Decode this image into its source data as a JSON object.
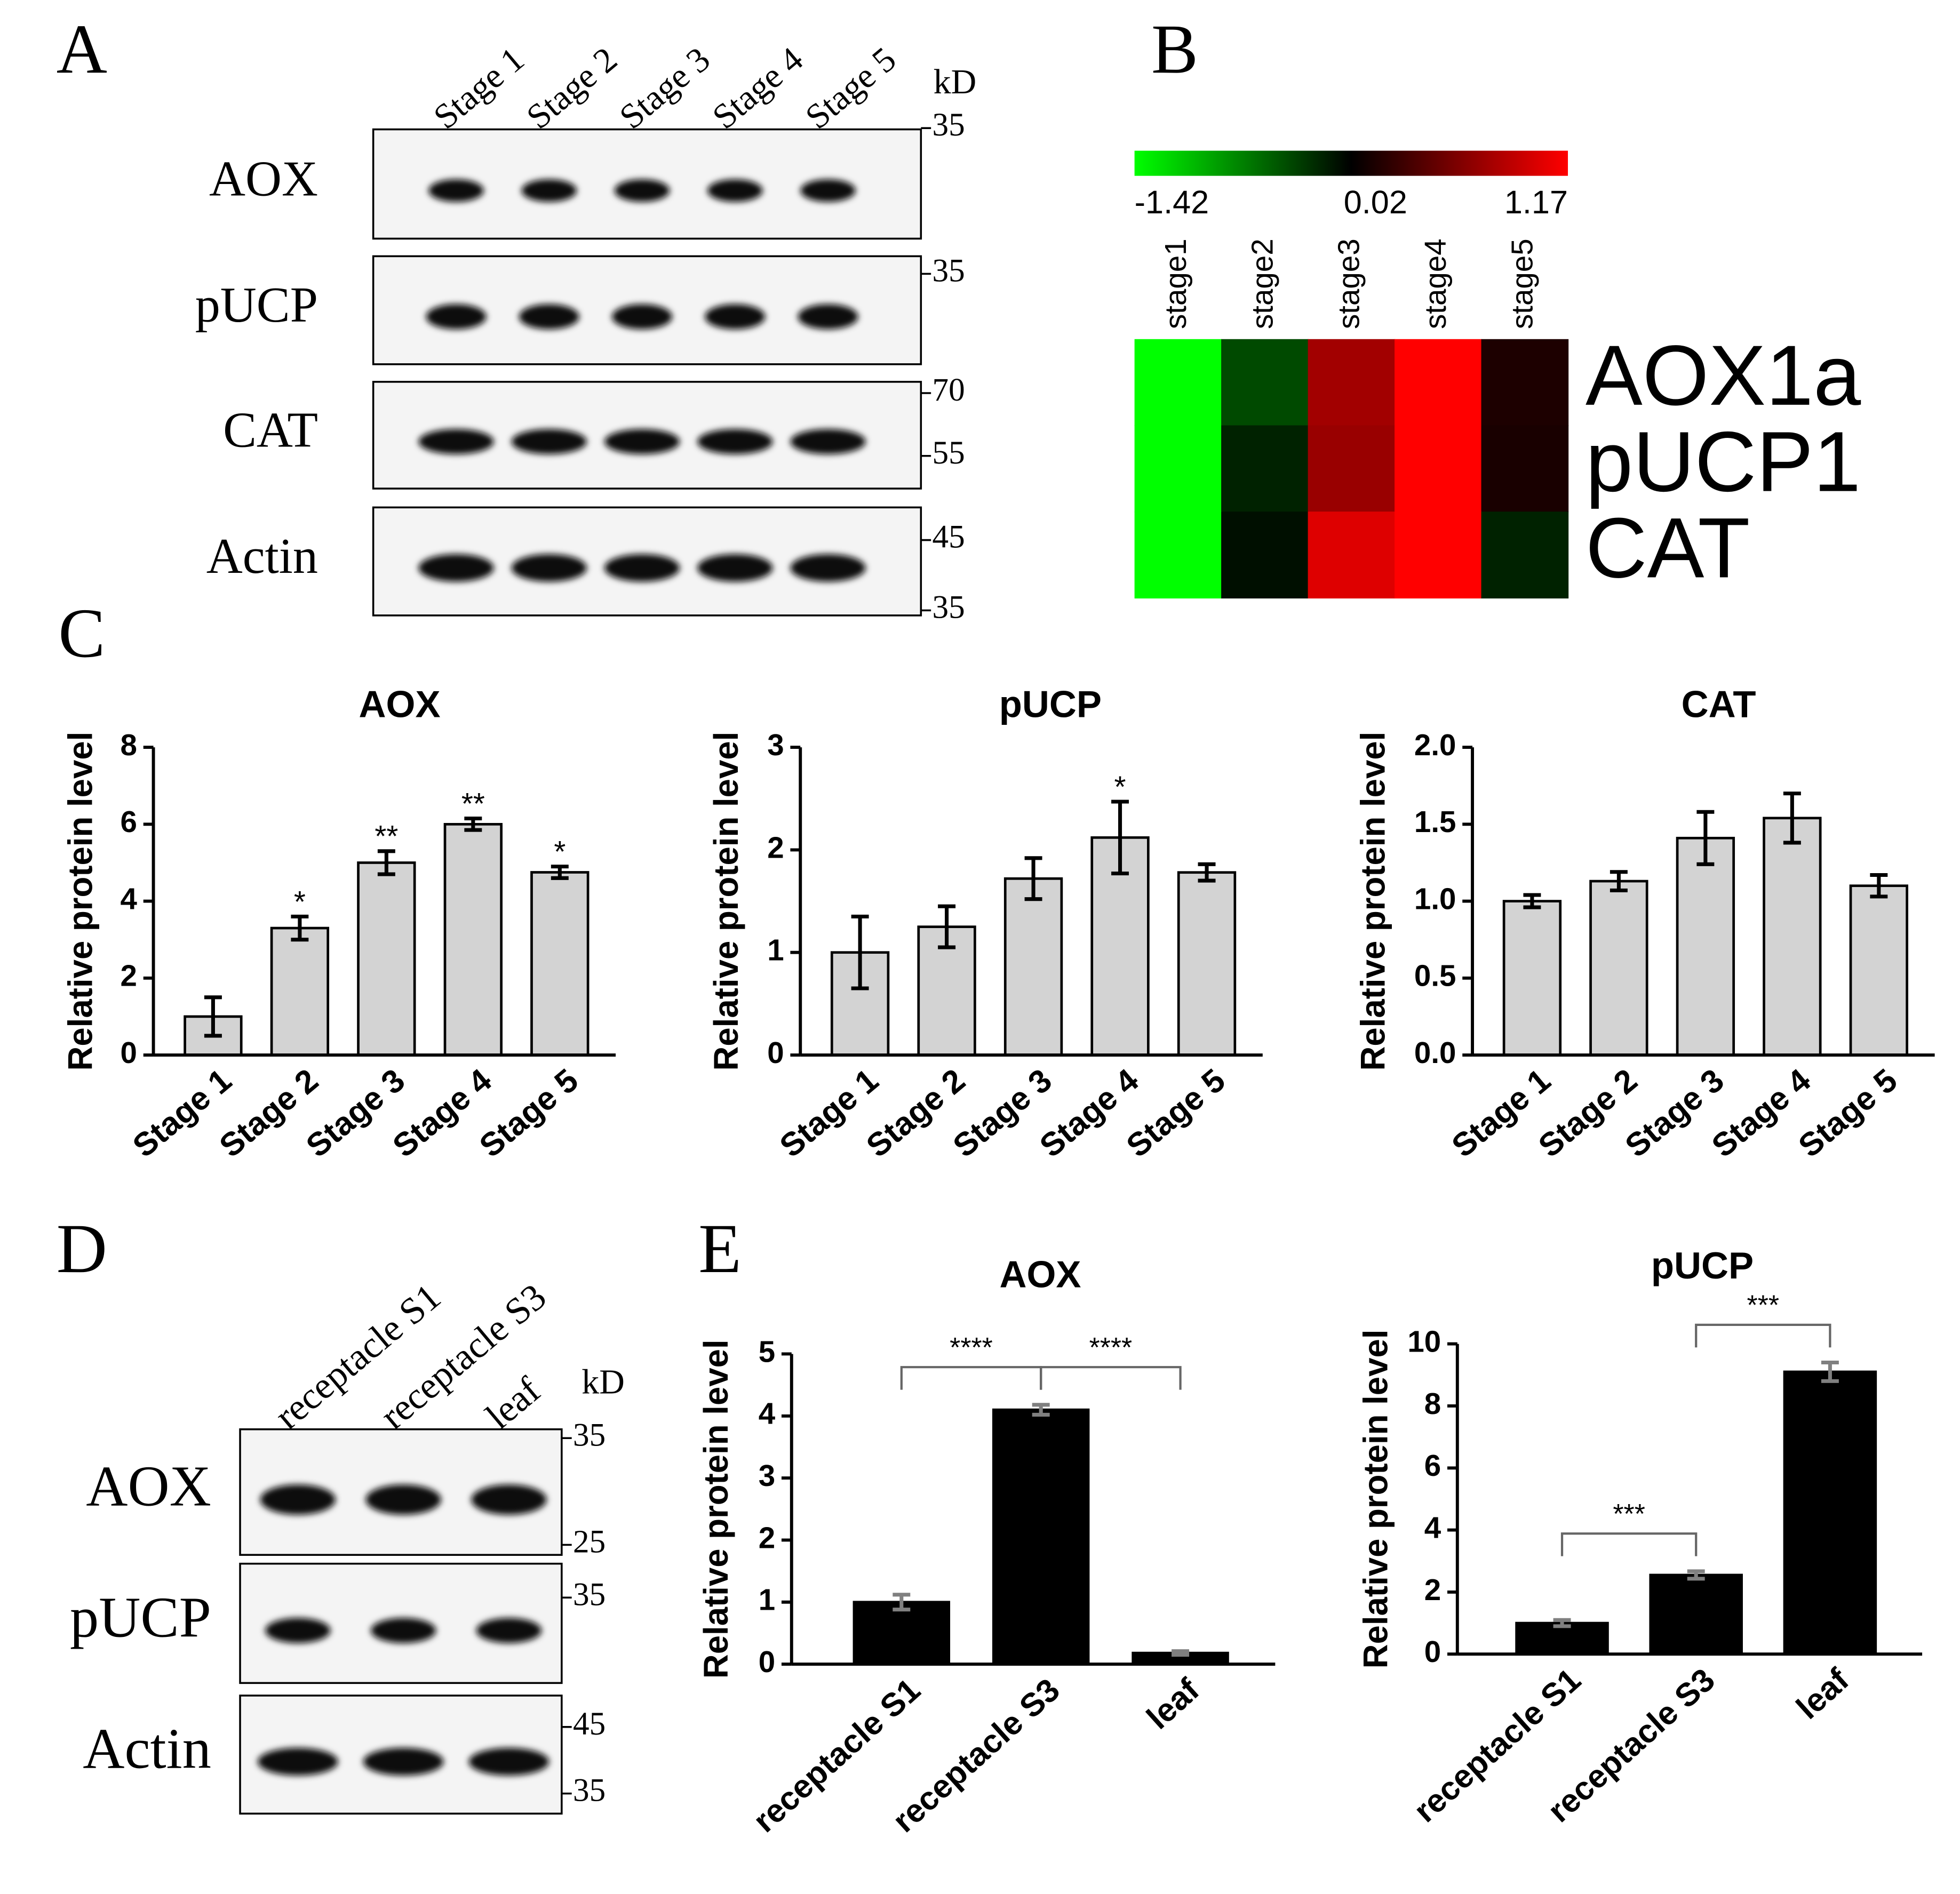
{
  "panel_labels": [
    "A",
    "B",
    "C",
    "D",
    "E"
  ],
  "blots": [
    {
      "lanes": [
        "Stage 1",
        "Stage 2",
        "Stage 3",
        "Stage 4",
        "Stage 5"
      ],
      "unit": "kD",
      "rows": [
        {
          "label": "AOX",
          "markers": [
            35
          ]
        },
        {
          "label": "pUCP",
          "markers": [
            35
          ]
        },
        {
          "label": "CAT",
          "markers": [
            70,
            55
          ]
        },
        {
          "label": "Actin",
          "markers": [
            45,
            35
          ]
        }
      ]
    },
    {
      "lanes": [
        "receptacle S1",
        "receptacle S3",
        "leaf"
      ],
      "unit": "kD",
      "rows": [
        {
          "label": "AOX",
          "markers": [
            35,
            25
          ]
        },
        {
          "label": "pUCP",
          "markers": [
            35
          ]
        },
        {
          "label": "Actin",
          "markers": [
            45,
            35
          ]
        }
      ]
    }
  ],
  "chart_data": [
    {
      "type": "heatmap",
      "columns": [
        "stage1",
        "stage2",
        "stage3",
        "stage4",
        "stage5"
      ],
      "rows": [
        "AOX1a",
        "pUCP1",
        "CAT"
      ],
      "values": [
        [
          -1.42,
          -0.5,
          0.7,
          1.17,
          0.02
        ],
        [
          -1.42,
          -0.3,
          0.65,
          1.17,
          0.0
        ],
        [
          -1.42,
          -0.2,
          1.0,
          1.17,
          -0.3
        ]
      ],
      "colors": [
        "#00ff00",
        "#000000",
        "#ff0000"
      ],
      "clim": [
        -1.42,
        1.17
      ],
      "cticks": [
        -1.42,
        0.02,
        1.17
      ]
    },
    {
      "type": "bar",
      "title": "AOX",
      "ylabel": "Relative protein level",
      "categories": [
        "Stage 1",
        "Stage 2",
        "Stage 3",
        "Stage 4",
        "Stage 5"
      ],
      "values": [
        1.0,
        3.3,
        5.0,
        6.0,
        4.75
      ],
      "errors": [
        0.5,
        0.3,
        0.3,
        0.15,
        0.15
      ],
      "annotations": [
        null,
        "*",
        "**",
        "**",
        "*"
      ],
      "color": "#d3d3d3",
      "error_color": "#000000",
      "ylim": [
        0,
        8
      ],
      "yticks": [
        0,
        2,
        4,
        6,
        8
      ]
    },
    {
      "type": "bar",
      "title": "pUCP",
      "ylabel": "Relative protein level",
      "categories": [
        "Stage 1",
        "Stage 2",
        "Stage 3",
        "Stage 4",
        "Stage 5"
      ],
      "values": [
        1.0,
        1.25,
        1.72,
        2.12,
        1.78
      ],
      "errors": [
        0.35,
        0.2,
        0.2,
        0.35,
        0.08
      ],
      "annotations": [
        null,
        null,
        null,
        "*",
        null
      ],
      "color": "#d3d3d3",
      "error_color": "#000000",
      "ylim": [
        0,
        3
      ],
      "yticks": [
        0,
        1,
        2,
        3
      ]
    },
    {
      "type": "bar",
      "title": "CAT",
      "ylabel": "Relative protein level",
      "categories": [
        "Stage 1",
        "Stage 2",
        "Stage 3",
        "Stage 4",
        "Stage 5"
      ],
      "values": [
        1.0,
        1.13,
        1.41,
        1.54,
        1.1
      ],
      "errors": [
        0.04,
        0.06,
        0.17,
        0.16,
        0.07
      ],
      "color": "#d3d3d3",
      "error_color": "#000000",
      "ylim": [
        0,
        2
      ],
      "yticks": [
        {
          "value": 0,
          "label": "0.0"
        },
        0.5,
        {
          "value": 1,
          "label": "1.0"
        },
        1.5,
        {
          "value": 2,
          "label": "2.0"
        }
      ]
    },
    {
      "type": "bar",
      "title": "AOX",
      "ylabel": "Relative protein level",
      "categories": [
        "receptacle S1",
        "receptacle S3",
        "leaf"
      ],
      "values": [
        1.0,
        4.1,
        0.18
      ],
      "errors": [
        0.12,
        0.08,
        0.03
      ],
      "comparisons": [
        {
          "between": [
            0,
            1
          ],
          "label": "****"
        },
        {
          "between": [
            1,
            2
          ],
          "label": "****"
        }
      ],
      "color": "#000000",
      "error_color": "#808080",
      "ylim": [
        0,
        5
      ],
      "yticks": [
        0,
        1,
        2,
        3,
        4,
        5
      ]
    },
    {
      "type": "bar",
      "title": "pUCP",
      "ylabel": "Relative protein level",
      "categories": [
        "receptacle S1",
        "receptacle S3",
        "leaf"
      ],
      "values": [
        1.0,
        2.55,
        9.1
      ],
      "errors": [
        0.1,
        0.12,
        0.3
      ],
      "comparisons": [
        {
          "between": [
            0,
            1
          ],
          "label": "***"
        },
        {
          "between": [
            1,
            2
          ],
          "label": "***"
        }
      ],
      "color": "#000000",
      "error_color": "#808080",
      "ylim": [
        0,
        10
      ],
      "yticks": [
        0,
        2,
        4,
        6,
        8,
        10
      ]
    }
  ]
}
